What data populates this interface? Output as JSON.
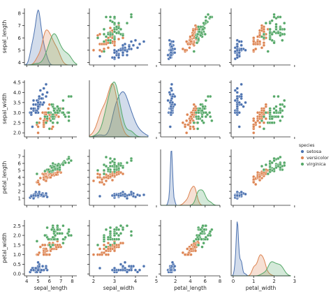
{
  "chart_data": {
    "type": "scatter",
    "kind": "pairplot",
    "variables": [
      "sepal_length",
      "sepal_width",
      "petal_length",
      "petal_width"
    ],
    "hue": "species",
    "legend": {
      "title": "species",
      "placement": "right",
      "entries": [
        "setosa",
        "versicolor",
        "virginica"
      ]
    },
    "colors": {
      "setosa": "#4c72b0",
      "versicolor": "#dd8452",
      "virginica": "#55a868"
    },
    "axes": {
      "sepal_length": {
        "lim": [
          3.8,
          8.4
        ],
        "ticks": [
          4,
          5,
          6,
          7,
          8
        ]
      },
      "sepal_width": {
        "lim": [
          1.8,
          4.6
        ],
        "ticks": [
          2.0,
          2.5,
          3.0,
          3.5,
          4.0,
          4.5
        ],
        "y_tick_labels": [
          "2.0",
          "2.5",
          "3.0",
          "3.5",
          "4.0",
          "4.5"
        ],
        "x_tick_labels": [
          "2",
          "3",
          "4",
          "5"
        ],
        "x_ticks": [
          2,
          3,
          4,
          5
        ]
      },
      "petal_length": {
        "lim": [
          0,
          8
        ],
        "ticks": [
          2,
          4,
          6,
          8
        ],
        "y_ticks": [
          1,
          2,
          3,
          4,
          5,
          6,
          7
        ],
        "y_tick_labels": [
          "1",
          "2",
          "3",
          "4",
          "5",
          "6",
          "7"
        ]
      },
      "petal_width": {
        "lim": [
          -0.1,
          2.8
        ],
        "ticks": [
          0,
          1,
          2,
          3
        ],
        "y_ticks": [
          0.0,
          0.5,
          1.0,
          1.5,
          2.0,
          2.5
        ],
        "y_tick_labels": [
          "0.0",
          "0.5",
          "1.0",
          "1.5",
          "2.0",
          "2.5"
        ]
      }
    },
    "series": [
      {
        "name": "setosa",
        "sepal_length": [
          5.1,
          4.9,
          4.7,
          4.6,
          5.0,
          5.4,
          4.6,
          5.0,
          4.4,
          4.9,
          5.4,
          4.8,
          4.8,
          4.3,
          5.8,
          5.7,
          5.4,
          5.1,
          5.7,
          5.1,
          5.4,
          5.1,
          4.6,
          5.1,
          4.8,
          5.0,
          5.0,
          5.2,
          5.2,
          4.7,
          4.8,
          5.4,
          5.2,
          5.5,
          4.9,
          5.0,
          5.5,
          4.9,
          4.4,
          5.1,
          5.0,
          4.5,
          4.4,
          5.0,
          5.1,
          4.8,
          5.1,
          4.6,
          5.3,
          5.0
        ],
        "sepal_width": [
          3.5,
          3.0,
          3.2,
          3.1,
          3.6,
          3.9,
          3.4,
          3.4,
          2.9,
          3.1,
          3.7,
          3.4,
          3.0,
          3.0,
          4.0,
          4.4,
          3.9,
          3.5,
          3.8,
          3.8,
          3.4,
          3.7,
          3.6,
          3.3,
          3.4,
          3.0,
          3.4,
          3.5,
          3.4,
          3.2,
          3.1,
          3.4,
          4.1,
          4.2,
          3.1,
          3.2,
          3.5,
          3.6,
          3.0,
          3.4,
          3.5,
          2.3,
          3.2,
          3.5,
          3.8,
          3.0,
          3.8,
          3.2,
          3.7,
          3.3
        ],
        "petal_length": [
          1.4,
          1.4,
          1.3,
          1.5,
          1.4,
          1.7,
          1.4,
          1.5,
          1.4,
          1.5,
          1.5,
          1.6,
          1.4,
          1.1,
          1.2,
          1.5,
          1.3,
          1.4,
          1.7,
          1.5,
          1.7,
          1.5,
          1.0,
          1.7,
          1.9,
          1.6,
          1.6,
          1.5,
          1.4,
          1.6,
          1.6,
          1.5,
          1.5,
          1.4,
          1.5,
          1.2,
          1.3,
          1.4,
          1.3,
          1.5,
          1.3,
          1.3,
          1.3,
          1.6,
          1.9,
          1.4,
          1.6,
          1.4,
          1.5,
          1.4
        ],
        "petal_width": [
          0.2,
          0.2,
          0.2,
          0.2,
          0.2,
          0.4,
          0.3,
          0.2,
          0.2,
          0.1,
          0.2,
          0.2,
          0.1,
          0.1,
          0.2,
          0.4,
          0.4,
          0.3,
          0.3,
          0.3,
          0.2,
          0.4,
          0.2,
          0.5,
          0.2,
          0.2,
          0.4,
          0.2,
          0.2,
          0.2,
          0.2,
          0.4,
          0.1,
          0.2,
          0.2,
          0.2,
          0.2,
          0.1,
          0.2,
          0.2,
          0.3,
          0.3,
          0.2,
          0.6,
          0.4,
          0.3,
          0.2,
          0.2,
          0.2,
          0.2
        ]
      },
      {
        "name": "versicolor",
        "sepal_length": [
          7.0,
          6.4,
          6.9,
          5.5,
          6.5,
          5.7,
          6.3,
          4.9,
          6.6,
          5.2,
          5.0,
          5.9,
          6.0,
          6.1,
          5.6,
          6.7,
          5.6,
          5.8,
          6.2,
          5.6,
          5.9,
          6.1,
          6.3,
          6.1,
          6.4,
          6.6,
          6.8,
          6.7,
          6.0,
          5.7,
          5.5,
          5.5,
          5.8,
          6.0,
          5.4,
          6.0,
          6.7,
          6.3,
          5.6,
          5.5,
          5.5,
          6.1,
          5.8,
          5.0,
          5.6,
          5.7,
          5.7,
          6.2,
          5.1,
          5.7
        ],
        "sepal_width": [
          3.2,
          3.2,
          3.1,
          2.3,
          2.8,
          2.8,
          3.3,
          2.4,
          2.9,
          2.7,
          2.0,
          3.0,
          2.2,
          2.9,
          2.9,
          3.1,
          3.0,
          2.7,
          2.2,
          2.5,
          3.2,
          2.8,
          2.5,
          2.8,
          2.9,
          3.0,
          2.8,
          3.0,
          2.9,
          2.6,
          2.4,
          2.4,
          2.7,
          2.7,
          3.0,
          3.4,
          3.1,
          2.3,
          3.0,
          2.5,
          2.6,
          3.0,
          2.6,
          2.3,
          2.7,
          3.0,
          2.9,
          2.9,
          2.5,
          2.8
        ],
        "petal_length": [
          4.7,
          4.5,
          4.9,
          4.0,
          4.6,
          4.5,
          4.7,
          3.3,
          4.6,
          3.9,
          3.5,
          4.2,
          4.0,
          4.7,
          3.6,
          4.4,
          4.5,
          4.1,
          4.5,
          3.9,
          4.8,
          4.0,
          4.9,
          4.7,
          4.3,
          4.4,
          4.8,
          5.0,
          4.5,
          3.5,
          3.8,
          3.7,
          3.9,
          5.1,
          4.5,
          4.5,
          4.7,
          4.4,
          4.1,
          4.0,
          4.4,
          4.6,
          4.0,
          3.3,
          4.2,
          4.2,
          4.2,
          4.3,
          3.0,
          4.1
        ],
        "petal_width": [
          1.4,
          1.5,
          1.5,
          1.3,
          1.5,
          1.3,
          1.6,
          1.0,
          1.3,
          1.4,
          1.0,
          1.5,
          1.0,
          1.4,
          1.3,
          1.4,
          1.5,
          1.0,
          1.5,
          1.1,
          1.8,
          1.3,
          1.5,
          1.2,
          1.3,
          1.4,
          1.4,
          1.7,
          1.5,
          1.0,
          1.1,
          1.0,
          1.2,
          1.6,
          1.5,
          1.6,
          1.5,
          1.3,
          1.3,
          1.3,
          1.2,
          1.4,
          1.2,
          1.0,
          1.3,
          1.2,
          1.3,
          1.3,
          1.1,
          1.3
        ]
      },
      {
        "name": "virginica",
        "sepal_length": [
          6.3,
          5.8,
          7.1,
          6.3,
          6.5,
          7.6,
          4.9,
          7.3,
          6.7,
          7.2,
          6.5,
          6.4,
          6.8,
          5.7,
          5.8,
          6.4,
          6.5,
          7.7,
          7.7,
          6.0,
          6.9,
          5.6,
          7.7,
          6.3,
          6.7,
          7.2,
          6.2,
          6.1,
          6.4,
          7.2,
          7.4,
          7.9,
          6.4,
          6.3,
          6.1,
          7.7,
          6.3,
          6.4,
          6.0,
          6.9,
          6.7,
          6.9,
          5.8,
          6.8,
          6.7,
          6.7,
          6.3,
          6.5,
          6.2,
          5.9
        ],
        "sepal_width": [
          3.3,
          2.7,
          3.0,
          2.9,
          3.0,
          3.0,
          2.5,
          2.9,
          2.5,
          3.6,
          3.2,
          2.7,
          3.0,
          2.5,
          2.8,
          3.2,
          3.0,
          3.8,
          2.6,
          2.2,
          3.2,
          2.8,
          2.8,
          2.7,
          3.3,
          3.2,
          2.8,
          3.0,
          2.8,
          3.0,
          2.8,
          3.8,
          2.8,
          2.8,
          2.6,
          3.0,
          3.4,
          3.1,
          3.0,
          3.1,
          3.1,
          3.1,
          2.7,
          3.2,
          3.3,
          3.0,
          2.5,
          3.0,
          3.4,
          3.0
        ],
        "petal_length": [
          6.0,
          5.1,
          5.9,
          5.6,
          5.8,
          6.6,
          4.5,
          6.3,
          5.8,
          6.1,
          5.1,
          5.3,
          5.5,
          5.0,
          5.1,
          5.3,
          5.5,
          6.7,
          6.9,
          5.0,
          5.7,
          4.9,
          6.7,
          4.9,
          5.7,
          6.0,
          4.8,
          4.9,
          5.6,
          5.8,
          6.1,
          6.4,
          5.6,
          5.1,
          5.6,
          6.1,
          5.6,
          5.5,
          4.8,
          5.4,
          5.6,
          5.1,
          5.1,
          5.9,
          5.7,
          5.2,
          5.0,
          5.2,
          5.4,
          5.1
        ],
        "petal_width": [
          2.5,
          1.9,
          2.1,
          1.8,
          2.2,
          2.1,
          1.7,
          1.8,
          1.8,
          2.5,
          2.0,
          1.9,
          2.1,
          2.0,
          2.4,
          2.3,
          1.8,
          2.2,
          2.3,
          1.5,
          2.3,
          2.0,
          2.0,
          1.8,
          2.1,
          1.8,
          1.8,
          1.8,
          2.1,
          1.6,
          1.9,
          2.0,
          2.2,
          1.5,
          1.4,
          2.3,
          2.4,
          1.8,
          1.8,
          2.1,
          2.4,
          2.3,
          1.9,
          2.3,
          2.5,
          2.3,
          1.9,
          2.0,
          2.3,
          1.8
        ]
      }
    ]
  }
}
